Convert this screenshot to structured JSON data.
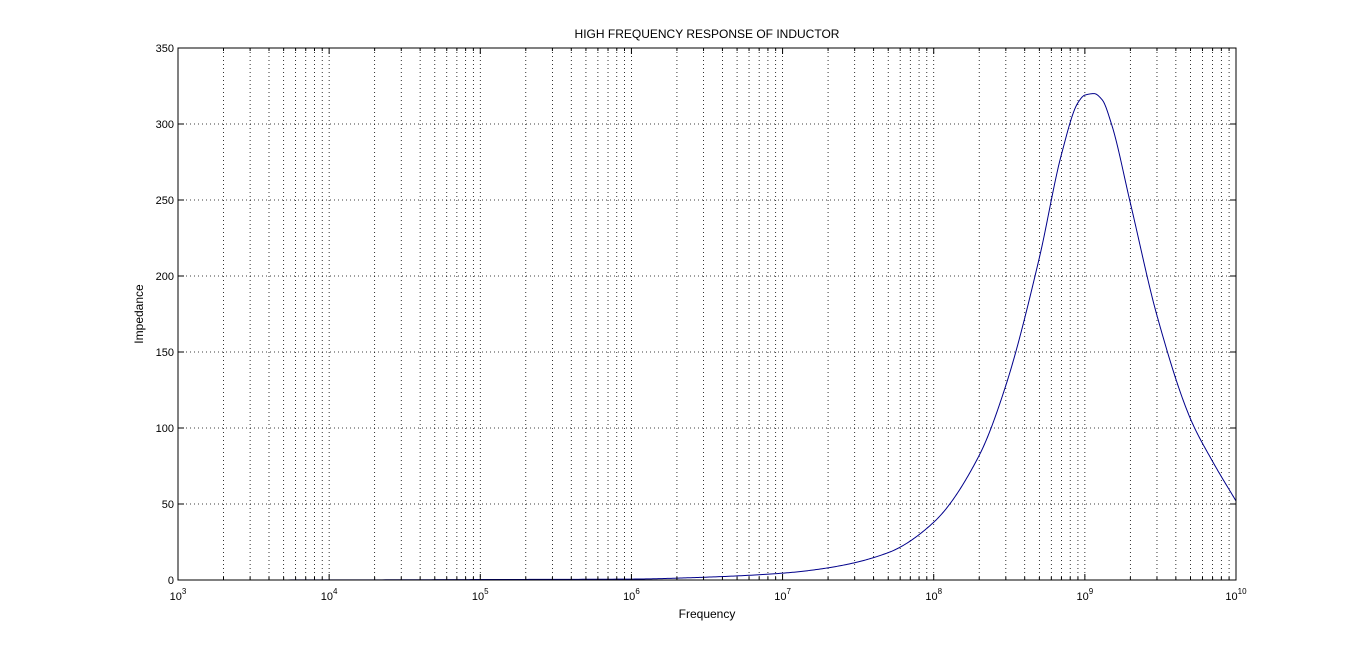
{
  "chart_data": {
    "type": "line",
    "title": "HIGH FREQUENCY RESPONSE OF INDUCTOR",
    "xlabel": "Frequency",
    "ylabel": "Impedance",
    "x_scale": "log",
    "xlim": [
      1000,
      10000000000
    ],
    "ylim": [
      0,
      350
    ],
    "x_ticks": [
      {
        "base": "10",
        "exp": "3",
        "value": 1000
      },
      {
        "base": "10",
        "exp": "4",
        "value": 10000
      },
      {
        "base": "10",
        "exp": "5",
        "value": 100000
      },
      {
        "base": "10",
        "exp": "6",
        "value": 1000000
      },
      {
        "base": "10",
        "exp": "7",
        "value": 10000000
      },
      {
        "base": "10",
        "exp": "8",
        "value": 100000000
      },
      {
        "base": "10",
        "exp": "9",
        "value": 1000000000
      },
      {
        "base": "10",
        "exp": "10",
        "value": 10000000000
      }
    ],
    "y_ticks": [
      "0",
      "50",
      "100",
      "150",
      "200",
      "250",
      "300",
      "350"
    ],
    "grid": true,
    "grid_style": "dotted",
    "line_color": "#00008b",
    "series": [
      {
        "x": [
          1000,
          10000,
          100000,
          1000000,
          3000000,
          10000000,
          20000000,
          50000000,
          100000000,
          200000000,
          300000000,
          500000000,
          700000000,
          900000000,
          1000000000,
          1150000000,
          1300000000,
          1500000000,
          2000000000,
          3000000000,
          5000000000,
          7000000000,
          10000000000
        ],
        "y": [
          0.01,
          0.06,
          0.3,
          0.6,
          1.8,
          4.5,
          8,
          18,
          38,
          82,
          128,
          212,
          280,
          314,
          319,
          320,
          316,
          300,
          248,
          174,
          106,
          78,
          52
        ]
      }
    ]
  }
}
